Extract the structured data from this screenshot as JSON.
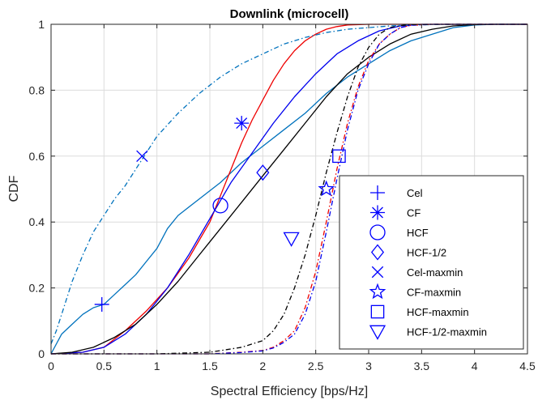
{
  "chart_data": {
    "type": "line",
    "title": "Downlink (microcell)",
    "xlabel": "Spectral Efficiency [bps/Hz]",
    "ylabel": "CDF",
    "xlim": [
      0,
      4.5
    ],
    "ylim": [
      0,
      1
    ],
    "xticks": [
      0,
      0.5,
      1,
      1.5,
      2,
      2.5,
      3,
      3.5,
      4,
      4.5
    ],
    "xtick_labels": [
      "0",
      "0.5",
      "1",
      "1.5",
      "2",
      "2.5",
      "3",
      "3.5",
      "4",
      "4.5"
    ],
    "yticks": [
      0,
      0.2,
      0.4,
      0.6,
      0.8,
      1
    ],
    "ytick_labels": [
      "0",
      "0.2",
      "0.4",
      "0.6",
      "0.8",
      "1"
    ],
    "grid": true,
    "legend_position": "bottom-right",
    "colors": {
      "cel": "#0072BD",
      "cf": "#EE0000",
      "hcf": "#0000EE",
      "hcf_half": "#000000",
      "marker": "#0000FF",
      "grid": "#DCDCDC",
      "axis": "#262626"
    },
    "series": [
      {
        "name": "Cel",
        "color": "#0072BD",
        "dash": "solid",
        "x": [
          0,
          0.1,
          0.2,
          0.3,
          0.4,
          0.5,
          0.6,
          0.7,
          0.8,
          0.9,
          1.0,
          1.1,
          1.2,
          1.4,
          1.6,
          1.8,
          2.0,
          2.2,
          2.4,
          2.6,
          2.8,
          3.0,
          3.2,
          3.4,
          3.6,
          3.8,
          4.0,
          4.2,
          4.5
        ],
        "y": [
          0,
          0.06,
          0.09,
          0.12,
          0.14,
          0.15,
          0.18,
          0.21,
          0.24,
          0.28,
          0.32,
          0.38,
          0.42,
          0.47,
          0.52,
          0.58,
          0.63,
          0.68,
          0.73,
          0.79,
          0.84,
          0.88,
          0.92,
          0.95,
          0.97,
          0.99,
          0.998,
          1,
          1
        ]
      },
      {
        "name": "CF",
        "color": "#EE0000",
        "dash": "solid",
        "x": [
          0,
          0.3,
          0.5,
          0.7,
          0.9,
          1.1,
          1.3,
          1.5,
          1.6,
          1.7,
          1.8,
          1.9,
          2.0,
          2.1,
          2.2,
          2.3,
          2.4,
          2.5,
          2.6,
          2.7,
          2.8,
          3.0,
          3.5,
          4.5
        ],
        "y": [
          0,
          0.005,
          0.02,
          0.07,
          0.13,
          0.2,
          0.29,
          0.4,
          0.48,
          0.56,
          0.64,
          0.71,
          0.77,
          0.83,
          0.88,
          0.92,
          0.95,
          0.97,
          0.985,
          0.993,
          0.998,
          1,
          1,
          1
        ]
      },
      {
        "name": "HCF",
        "color": "#0000EE",
        "dash": "solid",
        "x": [
          0,
          0.3,
          0.5,
          0.7,
          0.9,
          1.1,
          1.3,
          1.5,
          1.7,
          1.9,
          2.1,
          2.3,
          2.5,
          2.7,
          2.9,
          3.1,
          3.3,
          3.5,
          4.5
        ],
        "y": [
          0,
          0.005,
          0.02,
          0.06,
          0.12,
          0.2,
          0.3,
          0.41,
          0.52,
          0.61,
          0.7,
          0.78,
          0.85,
          0.91,
          0.95,
          0.98,
          0.995,
          1,
          1
        ]
      },
      {
        "name": "HCF-1/2",
        "color": "#000000",
        "dash": "solid",
        "x": [
          0,
          0.2,
          0.4,
          0.6,
          0.8,
          1.0,
          1.2,
          1.4,
          1.6,
          1.8,
          2.0,
          2.2,
          2.4,
          2.6,
          2.8,
          3.0,
          3.2,
          3.4,
          3.6,
          3.8,
          4.0,
          4.2,
          4.5
        ],
        "y": [
          0,
          0.005,
          0.02,
          0.05,
          0.09,
          0.15,
          0.22,
          0.3,
          0.38,
          0.46,
          0.54,
          0.62,
          0.7,
          0.78,
          0.85,
          0.9,
          0.94,
          0.97,
          0.985,
          0.995,
          0.999,
          1,
          1
        ]
      },
      {
        "name": "Cel-maxmin",
        "color": "#0072BD",
        "dash": "dashdot",
        "x": [
          0,
          0.05,
          0.1,
          0.2,
          0.3,
          0.4,
          0.5,
          0.6,
          0.7,
          0.8,
          0.9,
          1.0,
          1.2,
          1.4,
          1.6,
          1.8,
          2.0,
          2.2,
          2.4,
          2.6,
          2.8,
          3.0,
          3.2,
          3.4,
          3.6,
          3.8,
          4.0,
          4.5
        ],
        "y": [
          0.03,
          0.07,
          0.12,
          0.22,
          0.3,
          0.37,
          0.42,
          0.47,
          0.51,
          0.56,
          0.61,
          0.66,
          0.73,
          0.79,
          0.84,
          0.88,
          0.91,
          0.94,
          0.96,
          0.975,
          0.985,
          0.99,
          0.995,
          0.998,
          0.999,
          1,
          1,
          1
        ]
      },
      {
        "name": "CF-maxmin",
        "color": "#EE0000",
        "dash": "dashdot",
        "x": [
          0,
          1.5,
          1.8,
          2.0,
          2.1,
          2.2,
          2.3,
          2.4,
          2.5,
          2.6,
          2.7,
          2.8,
          2.9,
          3.0,
          3.1,
          3.2,
          3.3,
          3.4,
          3.6,
          4.5
        ],
        "y": [
          0,
          0,
          0.005,
          0.01,
          0.02,
          0.04,
          0.07,
          0.14,
          0.25,
          0.4,
          0.56,
          0.7,
          0.81,
          0.89,
          0.94,
          0.97,
          0.99,
          0.997,
          1,
          1
        ]
      },
      {
        "name": "HCF-maxmin",
        "color": "#0000EE",
        "dash": "dashdot",
        "x": [
          0,
          1.5,
          1.8,
          2.0,
          2.1,
          2.2,
          2.3,
          2.4,
          2.5,
          2.6,
          2.7,
          2.8,
          2.9,
          3.0,
          3.1,
          3.2,
          3.3,
          3.4,
          3.6,
          4.5
        ],
        "y": [
          0,
          0,
          0.004,
          0.009,
          0.018,
          0.035,
          0.06,
          0.12,
          0.22,
          0.37,
          0.53,
          0.68,
          0.8,
          0.88,
          0.94,
          0.97,
          0.99,
          0.997,
          1,
          1
        ]
      },
      {
        "name": "HCF-1/2-maxmin",
        "color": "#000000",
        "dash": "dashdot",
        "x": [
          0,
          1.0,
          1.5,
          1.8,
          2.0,
          2.1,
          2.2,
          2.3,
          2.4,
          2.5,
          2.6,
          2.7,
          2.8,
          2.9,
          3.0,
          3.1,
          3.2,
          3.3,
          3.4,
          3.6,
          4.5
        ],
        "y": [
          0,
          0,
          0.005,
          0.02,
          0.04,
          0.07,
          0.12,
          0.2,
          0.3,
          0.42,
          0.55,
          0.67,
          0.78,
          0.87,
          0.93,
          0.97,
          0.99,
          0.996,
          0.999,
          1,
          1
        ]
      }
    ],
    "markers": [
      {
        "series": "Cel",
        "symbol": "plus",
        "x": 0.48,
        "y": 0.15
      },
      {
        "series": "CF",
        "symbol": "asterisk",
        "x": 1.8,
        "y": 0.7
      },
      {
        "series": "HCF",
        "symbol": "circle",
        "x": 1.6,
        "y": 0.45
      },
      {
        "series": "HCF-1/2",
        "symbol": "diamond",
        "x": 2.0,
        "y": 0.55
      },
      {
        "series": "Cel-maxmin",
        "symbol": "x",
        "x": 0.86,
        "y": 0.6
      },
      {
        "series": "CF-maxmin",
        "symbol": "star",
        "x": 2.6,
        "y": 0.5
      },
      {
        "series": "HCF-maxmin",
        "symbol": "square",
        "x": 2.72,
        "y": 0.6
      },
      {
        "series": "HCF-1/2-maxmin",
        "symbol": "triangle-down",
        "x": 2.27,
        "y": 0.35
      }
    ],
    "legend": [
      {
        "label": "Cel",
        "symbol": "plus"
      },
      {
        "label": "CF",
        "symbol": "asterisk"
      },
      {
        "label": "HCF",
        "symbol": "circle"
      },
      {
        "label": "HCF-1/2",
        "symbol": "diamond"
      },
      {
        "label": "Cel-maxmin",
        "symbol": "x"
      },
      {
        "label": "CF-maxmin",
        "symbol": "star"
      },
      {
        "label": "HCF-maxmin",
        "symbol": "square"
      },
      {
        "label": "HCF-1/2-maxmin",
        "symbol": "triangle-down"
      }
    ]
  }
}
